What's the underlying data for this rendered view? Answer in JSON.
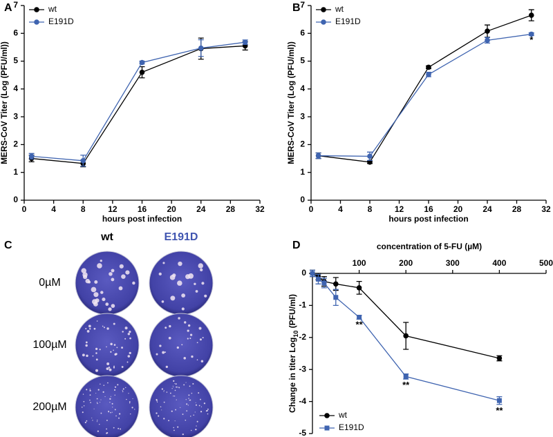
{
  "chart_data": [
    {
      "type": "line",
      "panel": "A",
      "x_label": "hours post infection",
      "y_label": "MERS-CoV Titer (Log (PFU/ml))",
      "x": [
        1,
        8,
        16,
        24,
        30
      ],
      "xlim": [
        0,
        32
      ],
      "xticks": [
        0,
        4,
        8,
        12,
        16,
        20,
        24,
        28,
        32
      ],
      "ylim": [
        0,
        7
      ],
      "yticks": [
        0,
        1,
        2,
        3,
        4,
        5,
        6,
        7
      ],
      "legend": "upper left",
      "series": [
        {
          "name": "wt",
          "color": "#000000",
          "marker": "circle",
          "values": [
            1.5,
            1.32,
            4.6,
            5.45,
            5.55
          ],
          "errors": [
            0.12,
            0.12,
            0.2,
            0.38,
            0.15
          ]
        },
        {
          "name": "E191D",
          "color": "#3f64b0",
          "marker": "circle",
          "values": [
            1.58,
            1.42,
            4.95,
            5.47,
            5.68
          ],
          "errors": [
            0.1,
            0.2,
            0.05,
            0.3,
            0.08
          ]
        }
      ],
      "annotations": []
    },
    {
      "type": "line",
      "panel": "B",
      "x_label": "hours post infection",
      "y_label": "MERS-CoV Titer (Log (PFU/ml))",
      "x": [
        1,
        8,
        16,
        24,
        30
      ],
      "xlim": [
        0,
        32
      ],
      "xticks": [
        0,
        4,
        8,
        12,
        16,
        20,
        24,
        28,
        32
      ],
      "ylim": [
        0,
        7
      ],
      "yticks": [
        0,
        1,
        2,
        3,
        4,
        5,
        6,
        7
      ],
      "legend": "upper left",
      "series": [
        {
          "name": "wt",
          "color": "#000000",
          "marker": "circle",
          "values": [
            1.6,
            1.37,
            4.78,
            6.08,
            6.65
          ],
          "errors": [
            0.1,
            0.05,
            0.05,
            0.22,
            0.2
          ]
        },
        {
          "name": "E191D",
          "color": "#3f64b0",
          "marker": "circle",
          "values": [
            1.6,
            1.58,
            4.52,
            5.75,
            5.97
          ],
          "errors": [
            0.1,
            0.15,
            0.08,
            0.1,
            0.05
          ]
        }
      ],
      "annotations": [
        {
          "text": "*",
          "x": 30,
          "y": 5.75
        }
      ]
    },
    {
      "type": "line",
      "panel": "D",
      "x_label": "concentration of 5-FU (µM)",
      "y_label": {
        "text": "Change in titer Log",
        "subscript": "10",
        "suffix": " (PFU/ml)"
      },
      "x": [
        0,
        12.5,
        25,
        50,
        100,
        200,
        400
      ],
      "xlim": [
        0,
        500
      ],
      "xticks": [
        0,
        100,
        200,
        300,
        400,
        500
      ],
      "ylim": [
        -5,
        0
      ],
      "yticks": [
        0,
        -1,
        -2,
        -3,
        -4,
        -5
      ],
      "legend": "lower left",
      "series": [
        {
          "name": "wt",
          "color": "#000000",
          "marker": "circle",
          "values": [
            0,
            -0.1,
            -0.25,
            -0.33,
            -0.45,
            -1.95,
            -2.65
          ],
          "errors": [
            0.1,
            0.1,
            0.15,
            0.2,
            0.2,
            0.42,
            0.08
          ]
        },
        {
          "name": "E191D",
          "color": "#3f64b0",
          "marker": "square",
          "values": [
            0,
            -0.18,
            -0.3,
            -0.75,
            -1.37,
            -3.22,
            -3.97
          ],
          "errors": [
            0.1,
            0.15,
            0.15,
            0.25,
            0.06,
            0.08,
            0.12
          ]
        }
      ],
      "annotations": [
        {
          "text": "**",
          "x": 100,
          "y": -1.62
        },
        {
          "text": "**",
          "x": 200,
          "y": -3.5
        },
        {
          "text": "**",
          "x": 400,
          "y": -4.3
        }
      ]
    }
  ],
  "panel_c": {
    "panel": "C",
    "columns": [
      "wt",
      "E191D"
    ],
    "rows": [
      "0µM",
      "100µM",
      "200µM"
    ]
  }
}
